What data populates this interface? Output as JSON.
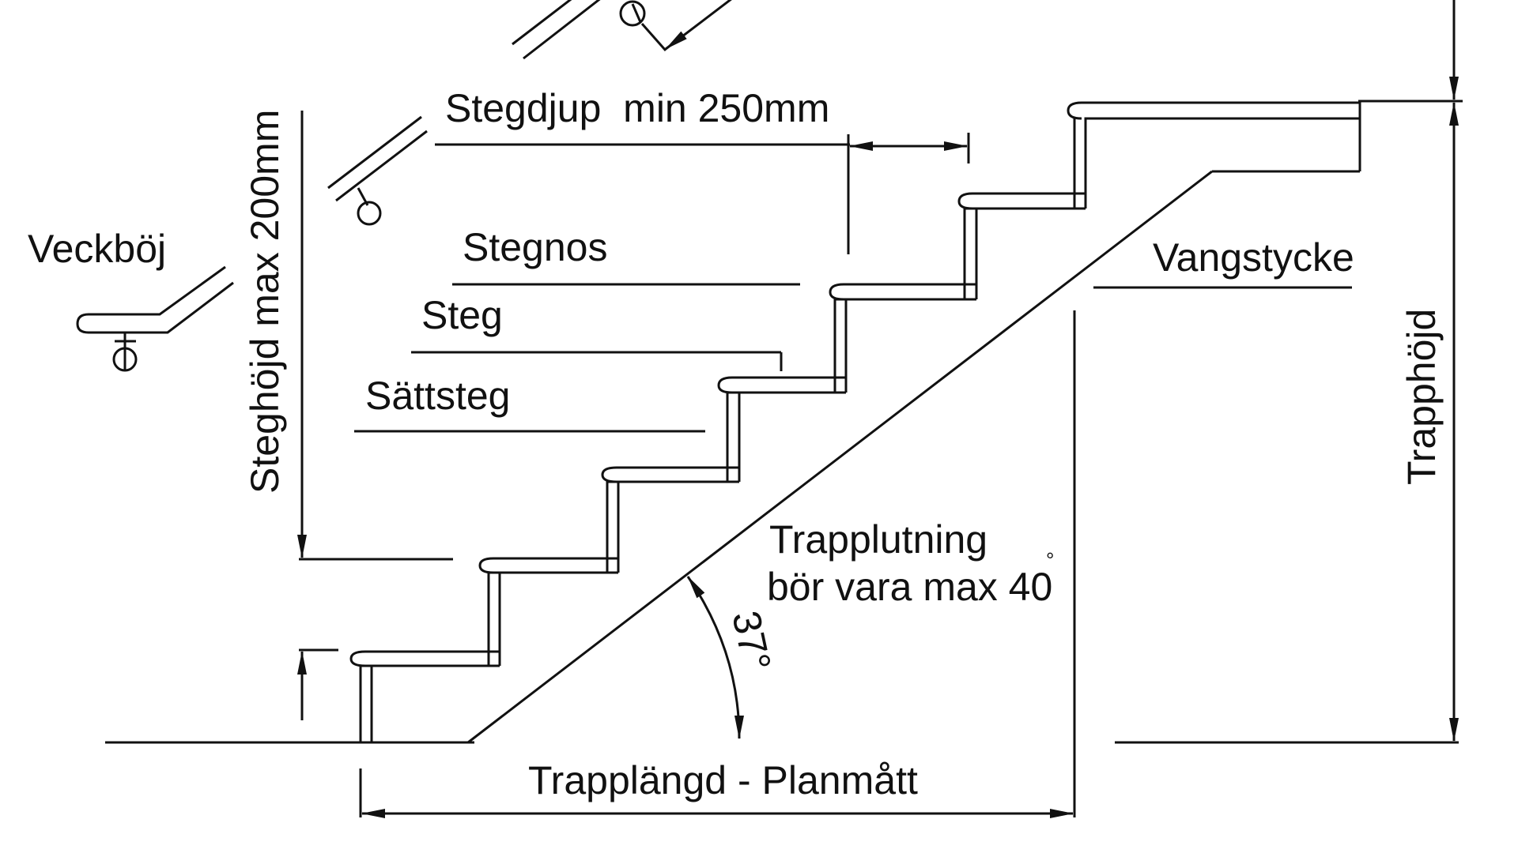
{
  "diagram": {
    "labels": {
      "stegdjup": "Stegdjup  min 250mm",
      "steghojd": "Steghöjd max 200mm",
      "veckboj": "Veckböj",
      "stegnos": "Stegnos",
      "steg": "Steg",
      "sattsteg": "Sättsteg",
      "vangstycke": "Vangstycke",
      "trapphojd": "Trapphöjd",
      "trapplutning_line1": "Trapplutning",
      "trapplutning_line2": "bör vara max 40",
      "degree_symbol": "°",
      "angle": "37°",
      "trapplangd": "Trapplängd - Planmått"
    },
    "colors": {
      "line": "#111111",
      "background": "#ffffff"
    }
  }
}
